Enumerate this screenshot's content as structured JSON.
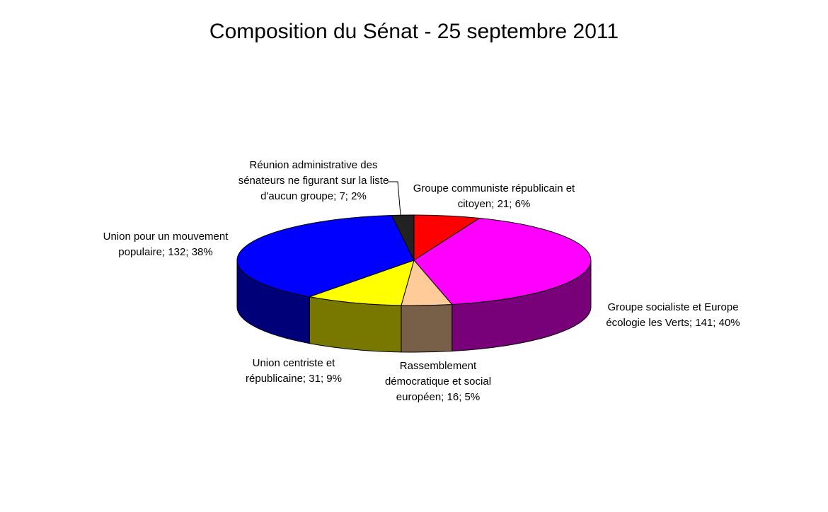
{
  "chart_data": {
    "type": "pie3d",
    "title": "Composition du Sénat - 25 septembre 2011",
    "values": [
      21,
      141,
      16,
      31,
      132,
      7
    ],
    "value_labels": [
      "Groupe communiste républicain et citoyen; 21; 6%",
      "Groupe socialiste et Europe écologie les Verts; 141; 40%",
      "Rassemblement démocratique et social européen; 16; 5%",
      "Union centriste et républicaine; 31; 9%",
      "Union pour un mouvement populaire; 132; 38%",
      "Réunion administrative des sénateurs ne figurant sur la liste d'aucun groupe; 7; 2%"
    ],
    "colors": [
      "#ff0000",
      "#ff00ff",
      "#ffcc99",
      "#ffff00",
      "#0000ff",
      "#222222"
    ]
  }
}
